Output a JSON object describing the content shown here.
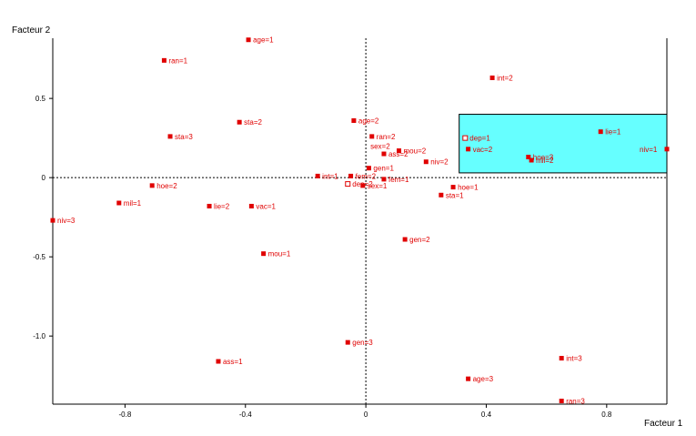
{
  "chart_data": {
    "type": "scatter",
    "xlabel": "Facteur 1",
    "ylabel": "Facteur 2",
    "xlim": [
      -1.04,
      1.0
    ],
    "ylim": [
      -1.43,
      0.88
    ],
    "xticks": [
      {
        "v": -0.8,
        "label": "-0.8"
      },
      {
        "v": -0.4,
        "label": "-0.4"
      },
      {
        "v": 0,
        "label": "0"
      },
      {
        "v": 0.4,
        "label": "0.4"
      },
      {
        "v": 0.8,
        "label": "0.8"
      }
    ],
    "yticks": [
      {
        "v": 0.5,
        "label": "0.5"
      },
      {
        "v": 0,
        "label": "0"
      },
      {
        "v": -0.5,
        "label": "-0.5"
      },
      {
        "v": -1.0,
        "label": "-1.0"
      }
    ],
    "point_color": "#e00000",
    "zoom_box": {
      "x0": 0.31,
      "x1": 1.0,
      "y0": 0.03,
      "y1": 0.4,
      "fill": "#66ffff"
    },
    "points": [
      {
        "label": "age=1",
        "x": -0.39,
        "y": 0.87,
        "marker": "filled"
      },
      {
        "label": "ran=1",
        "x": -0.67,
        "y": 0.74,
        "marker": "filled"
      },
      {
        "label": "int=2",
        "x": 0.42,
        "y": 0.63,
        "marker": "filled"
      },
      {
        "label": "sta=2",
        "x": -0.42,
        "y": 0.35,
        "marker": "filled"
      },
      {
        "label": "age=2",
        "x": -0.04,
        "y": 0.36,
        "marker": "filled"
      },
      {
        "label": "ran=2",
        "x": 0.02,
        "y": 0.26,
        "marker": "filled"
      },
      {
        "label": "sta=3",
        "x": -0.65,
        "y": 0.26,
        "marker": "filled"
      },
      {
        "label": "sex=2",
        "x": 0.0,
        "y": 0.2,
        "marker": "none"
      },
      {
        "label": "mou=2",
        "x": 0.11,
        "y": 0.17,
        "marker": "filled"
      },
      {
        "label": "ass=2",
        "x": 0.06,
        "y": 0.15,
        "marker": "filled"
      },
      {
        "label": "niv=2",
        "x": 0.2,
        "y": 0.1,
        "marker": "filled"
      },
      {
        "label": "int=1",
        "x": -0.16,
        "y": 0.01,
        "marker": "filled"
      },
      {
        "label": "gen=1",
        "x": 0.01,
        "y": 0.06,
        "marker": "filled"
      },
      {
        "label": "fem=2",
        "x": -0.05,
        "y": 0.01,
        "marker": "filled"
      },
      {
        "label": "fem=1",
        "x": 0.06,
        "y": -0.01,
        "marker": "filled"
      },
      {
        "label": "dep=2",
        "x": -0.06,
        "y": -0.04,
        "marker": "open"
      },
      {
        "label": "sex=1",
        "x": -0.01,
        "y": -0.05,
        "marker": "filled"
      },
      {
        "label": "hoe=1",
        "x": 0.29,
        "y": -0.06,
        "marker": "filled"
      },
      {
        "label": "sta=1",
        "x": 0.25,
        "y": -0.11,
        "marker": "filled"
      },
      {
        "label": "hoe=2",
        "x": -0.71,
        "y": -0.05,
        "marker": "filled"
      },
      {
        "label": "mil=1",
        "x": -0.82,
        "y": -0.16,
        "marker": "filled"
      },
      {
        "label": "lie=2",
        "x": -0.52,
        "y": -0.18,
        "marker": "filled"
      },
      {
        "label": "vac=1",
        "x": -0.38,
        "y": -0.18,
        "marker": "filled"
      },
      {
        "label": "niv=3",
        "x": -1.04,
        "y": -0.27,
        "marker": "filled"
      },
      {
        "label": "gen=2",
        "x": 0.13,
        "y": -0.39,
        "marker": "filled"
      },
      {
        "label": "mou=1",
        "x": -0.34,
        "y": -0.48,
        "marker": "filled"
      },
      {
        "label": "gen=3",
        "x": -0.06,
        "y": -1.04,
        "marker": "filled"
      },
      {
        "label": "ass=1",
        "x": -0.49,
        "y": -1.16,
        "marker": "filled"
      },
      {
        "label": "int=3",
        "x": 0.65,
        "y": -1.14,
        "marker": "filled"
      },
      {
        "label": "age=3",
        "x": 0.34,
        "y": -1.27,
        "marker": "filled"
      },
      {
        "label": "ran=3",
        "x": 0.65,
        "y": -1.41,
        "marker": "filled"
      },
      {
        "label": "dep=1",
        "x": 0.33,
        "y": 0.25,
        "marker": "open"
      },
      {
        "label": "vac=2",
        "x": 0.34,
        "y": 0.18,
        "marker": "filled"
      },
      {
        "label": "lie=1",
        "x": 0.78,
        "y": 0.29,
        "marker": "filled"
      },
      {
        "label": "niv=1",
        "x": 1.0,
        "y": 0.18,
        "marker": "filled"
      },
      {
        "label": "hoe=3",
        "x": 0.54,
        "y": 0.13,
        "marker": "filled"
      },
      {
        "label": "mil=2",
        "x": 0.55,
        "y": 0.11,
        "marker": "filled"
      }
    ]
  }
}
